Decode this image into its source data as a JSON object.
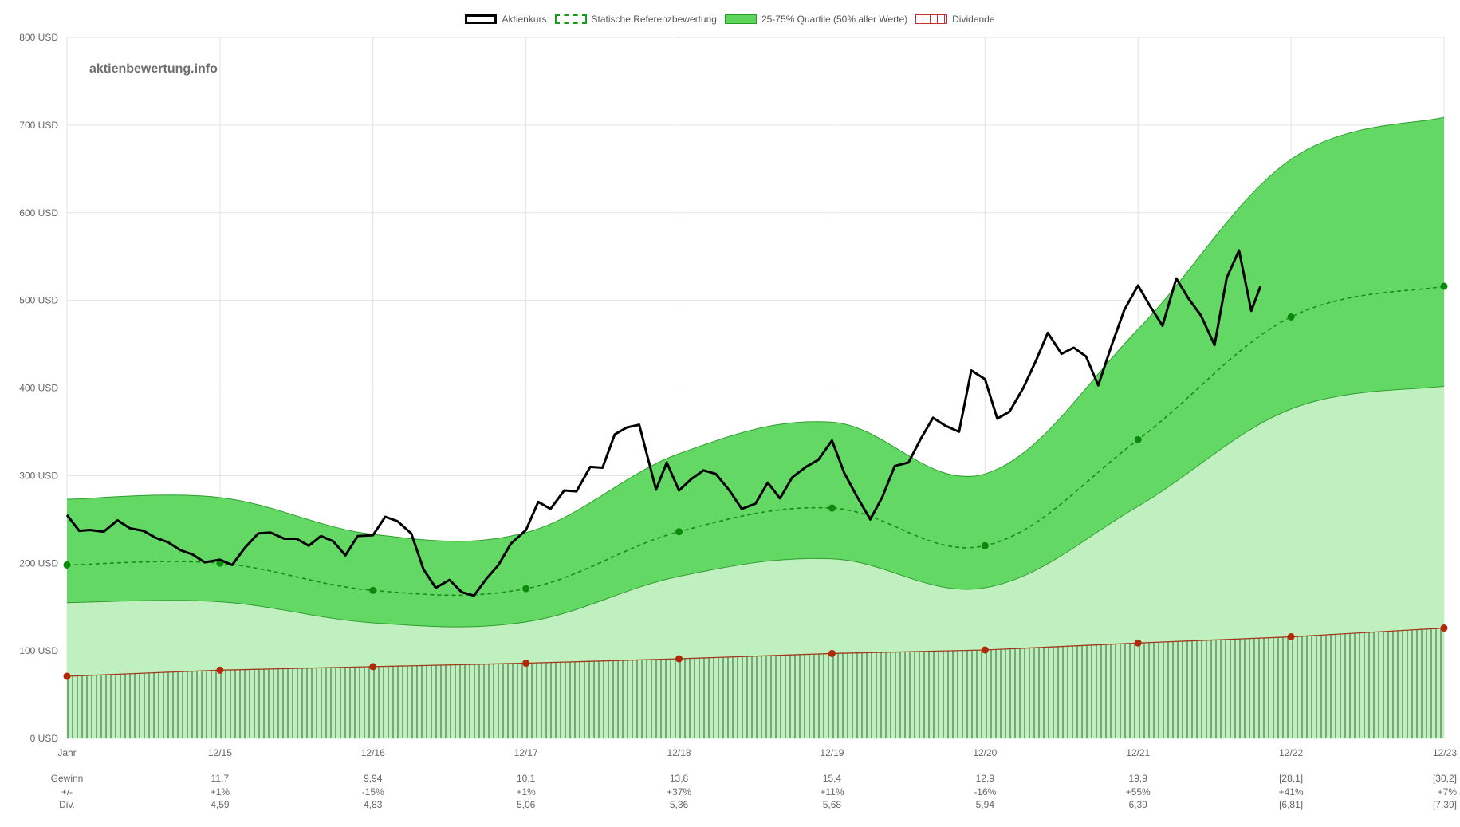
{
  "legend": [
    {
      "label": "Aktienkurs",
      "style": "line-solid",
      "color": "#000000"
    },
    {
      "label": "Statische Referenzbewertung",
      "style": "line-dashed",
      "color": "#008000"
    },
    {
      "label": "25-75% Quartile (50% aller Werte)",
      "style": "fill",
      "color": "#5cd65c"
    },
    {
      "label": "Dividende",
      "style": "bars",
      "color": "#d04040"
    }
  ],
  "watermark": "aktienbewertung.info",
  "chart_data": {
    "type": "line",
    "ylim": [
      0,
      800
    ],
    "yticks": [
      {
        "v": 0,
        "label": "0 USD"
      },
      {
        "v": 100,
        "label": "100 USD"
      },
      {
        "v": 200,
        "label": "200 USD"
      },
      {
        "v": 300,
        "label": "300 USD"
      },
      {
        "v": 400,
        "label": "400 USD"
      },
      {
        "v": 500,
        "label": "500 USD"
      },
      {
        "v": 600,
        "label": "600 USD"
      },
      {
        "v": 700,
        "label": "700 USD"
      },
      {
        "v": 800,
        "label": "800 USD"
      }
    ],
    "categories": [
      "Jahr",
      "12/15",
      "12/16",
      "12/17",
      "12/18",
      "12/19",
      "12/20",
      "12/21",
      "12/22",
      "12/23"
    ],
    "table_rows": [
      {
        "label": "Gewinn",
        "values": [
          "",
          "11,7",
          "9,94",
          "10,1",
          "13,8",
          "15,4",
          "12,9",
          "19,9",
          "[28,1]",
          "[30,2]"
        ]
      },
      {
        "label": "+/-",
        "values": [
          "",
          "+1%",
          "-15%",
          "+1%",
          "+37%",
          "+11%",
          "-16%",
          "+55%",
          "+41%",
          "+7%"
        ]
      },
      {
        "label": "Div.",
        "values": [
          "",
          "4,59",
          "4,83",
          "5,06",
          "5,36",
          "5,68",
          "5,94",
          "6,39",
          "[6,81]",
          "[7,39]"
        ]
      }
    ],
    "series": [
      {
        "name": "Statische Referenzbewertung",
        "values": [
          198,
          200,
          169,
          171,
          236,
          263,
          220,
          341,
          481,
          516
        ]
      },
      {
        "name": "Dividende",
        "values": [
          71,
          78,
          82,
          86,
          91,
          97,
          101,
          109,
          116,
          126
        ]
      }
    ],
    "quartile_band": {
      "name": "25-75% Quartile (50% aller Werte)",
      "lower": [
        155,
        156,
        132,
        133,
        185,
        205,
        172,
        265,
        376,
        402
      ],
      "upper": [
        273,
        275,
        233,
        235,
        325,
        361,
        302,
        467,
        661,
        709
      ]
    },
    "price": {
      "name": "Aktienkurs",
      "points": [
        [
          0.0,
          255
        ],
        [
          0.08,
          237
        ],
        [
          0.15,
          238
        ],
        [
          0.24,
          236
        ],
        [
          0.33,
          249
        ],
        [
          0.41,
          240
        ],
        [
          0.5,
          237
        ],
        [
          0.58,
          229
        ],
        [
          0.66,
          224
        ],
        [
          0.74,
          215
        ],
        [
          0.82,
          210
        ],
        [
          0.9,
          201
        ],
        [
          1.0,
          204
        ],
        [
          1.08,
          198
        ],
        [
          1.16,
          217
        ],
        [
          1.25,
          234
        ],
        [
          1.33,
          235
        ],
        [
          1.42,
          228
        ],
        [
          1.5,
          228
        ],
        [
          1.58,
          220
        ],
        [
          1.66,
          231
        ],
        [
          1.74,
          225
        ],
        [
          1.82,
          209
        ],
        [
          1.9,
          231
        ],
        [
          2.0,
          232
        ],
        [
          2.08,
          253
        ],
        [
          2.16,
          248
        ],
        [
          2.25,
          234
        ],
        [
          2.33,
          193
        ],
        [
          2.41,
          172
        ],
        [
          2.5,
          181
        ],
        [
          2.58,
          167
        ],
        [
          2.66,
          163
        ],
        [
          2.74,
          182
        ],
        [
          2.82,
          198
        ],
        [
          2.9,
          222
        ],
        [
          3.0,
          238
        ],
        [
          3.08,
          270
        ],
        [
          3.16,
          262
        ],
        [
          3.25,
          283
        ],
        [
          3.33,
          282
        ],
        [
          3.42,
          310
        ],
        [
          3.5,
          309
        ],
        [
          3.58,
          347
        ],
        [
          3.66,
          355
        ],
        [
          3.74,
          358
        ],
        [
          3.85,
          284
        ],
        [
          3.92,
          315
        ],
        [
          4.0,
          283
        ],
        [
          4.08,
          296
        ],
        [
          4.16,
          306
        ],
        [
          4.24,
          302
        ],
        [
          4.33,
          283
        ],
        [
          4.41,
          262
        ],
        [
          4.5,
          268
        ],
        [
          4.58,
          292
        ],
        [
          4.66,
          274
        ],
        [
          4.74,
          298
        ],
        [
          4.83,
          310
        ],
        [
          4.91,
          318
        ],
        [
          5.0,
          340
        ],
        [
          5.08,
          303
        ],
        [
          5.16,
          277
        ],
        [
          5.25,
          250
        ],
        [
          5.33,
          276
        ],
        [
          5.41,
          311
        ],
        [
          5.5,
          315
        ],
        [
          5.58,
          342
        ],
        [
          5.66,
          366
        ],
        [
          5.74,
          357
        ],
        [
          5.83,
          350
        ],
        [
          5.91,
          420
        ],
        [
          6.0,
          410
        ],
        [
          6.08,
          365
        ],
        [
          6.16,
          373
        ],
        [
          6.25,
          400
        ],
        [
          6.33,
          430
        ],
        [
          6.41,
          463
        ],
        [
          6.5,
          439
        ],
        [
          6.58,
          446
        ],
        [
          6.66,
          436
        ],
        [
          6.74,
          403
        ],
        [
          6.83,
          450
        ],
        [
          6.91,
          489
        ],
        [
          7.0,
          517
        ],
        [
          7.08,
          493
        ],
        [
          7.16,
          471
        ],
        [
          7.25,
          525
        ],
        [
          7.33,
          502
        ],
        [
          7.41,
          483
        ],
        [
          7.5,
          449
        ],
        [
          7.58,
          526
        ],
        [
          7.66,
          557
        ],
        [
          7.74,
          488
        ],
        [
          7.8,
          516
        ]
      ]
    }
  }
}
